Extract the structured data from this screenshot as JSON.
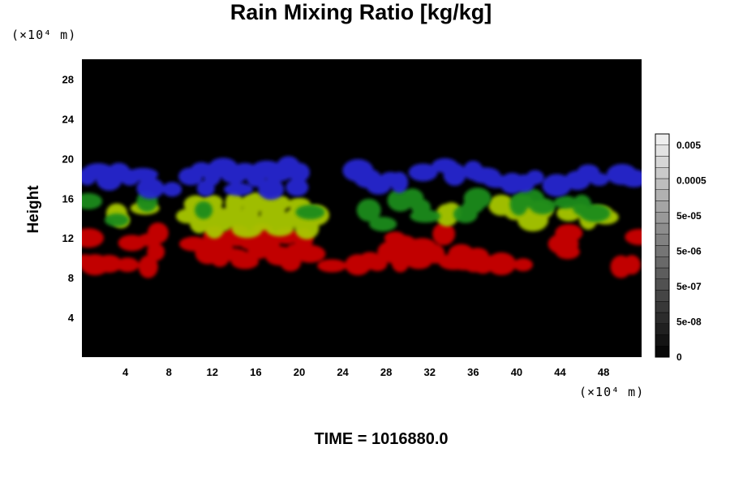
{
  "chart_data": {
    "type": "heatmap",
    "title": "Rain Mixing Ratio [kg/kg]",
    "xlabel": "",
    "ylabel": "Height",
    "x_unit": "(×10⁴ m)",
    "y_unit": "(×10⁴ m)",
    "xlim": [
      0,
      51.5
    ],
    "ylim": [
      0,
      30
    ],
    "x_ticks": [
      4,
      8,
      12,
      16,
      20,
      24,
      28,
      32,
      36,
      40,
      44,
      48
    ],
    "y_ticks": [
      4,
      8,
      12,
      16,
      20,
      24,
      28
    ],
    "background": "#000000",
    "layers": [
      {
        "color": "#cc0000",
        "blobs": [
          [
            0.3,
            9.7
          ],
          [
            1.2,
            9.3
          ],
          [
            2.5,
            9.4
          ],
          [
            4.2,
            9.3
          ],
          [
            6.1,
            9.1
          ],
          [
            0.6,
            12.0
          ],
          [
            4.6,
            11.5
          ],
          [
            6.2,
            11.8
          ],
          [
            7.0,
            12.5
          ],
          [
            6.8,
            10.6
          ],
          [
            10.3,
            11.4
          ],
          [
            11.6,
            10.5
          ],
          [
            12.2,
            12.2
          ],
          [
            13.0,
            11.0
          ],
          [
            13.9,
            10.3
          ],
          [
            14.3,
            12.2
          ],
          [
            15.5,
            11.7
          ],
          [
            16.2,
            10.6
          ],
          [
            17.4,
            11.4
          ],
          [
            18.2,
            10.2
          ],
          [
            18.8,
            12.2
          ],
          [
            19.8,
            10.8
          ],
          [
            20.4,
            11.9
          ],
          [
            21.0,
            10.4
          ],
          [
            15.0,
            9.6
          ],
          [
            16.6,
            12.3
          ],
          [
            19.2,
            9.6
          ],
          [
            12.7,
            9.9
          ],
          [
            23.0,
            9.2
          ],
          [
            25.4,
            9.3
          ],
          [
            26.5,
            9.7
          ],
          [
            27.2,
            9.4
          ],
          [
            28.6,
            10.6
          ],
          [
            29.6,
            11.3
          ],
          [
            30.4,
            10.5
          ],
          [
            28.8,
            12.0
          ],
          [
            29.3,
            9.6
          ],
          [
            31.3,
            11.1
          ],
          [
            31.0,
            9.6
          ],
          [
            33.3,
            12.4
          ],
          [
            32.5,
            10.4
          ],
          [
            34.2,
            9.6
          ],
          [
            35.2,
            9.4
          ],
          [
            36.1,
            9.6
          ],
          [
            36.9,
            9.3
          ],
          [
            37.7,
            9.5
          ],
          [
            38.6,
            9.4
          ],
          [
            34.9,
            10.4
          ],
          [
            36.4,
            10.2
          ],
          [
            40.6,
            9.3
          ],
          [
            44.3,
            11.4
          ],
          [
            44.8,
            12.5
          ],
          [
            44.7,
            10.6
          ],
          [
            49.6,
            9.1
          ],
          [
            50.6,
            9.3
          ],
          [
            51.3,
            12.1
          ]
        ]
      },
      {
        "color": "#a8c800",
        "blobs": [
          [
            9.7,
            14.2
          ],
          [
            10.8,
            13.6
          ],
          [
            11.6,
            14.7
          ],
          [
            12.6,
            13.4
          ],
          [
            13.5,
            14.4
          ],
          [
            14.5,
            13.8
          ],
          [
            15.5,
            14.6
          ],
          [
            16.5,
            13.5
          ],
          [
            17.6,
            14.3
          ],
          [
            18.6,
            13.5
          ],
          [
            19.6,
            14.2
          ],
          [
            20.6,
            13.6
          ],
          [
            21.5,
            14.3
          ],
          [
            10.5,
            15.4
          ],
          [
            12.0,
            15.6
          ],
          [
            14.0,
            15.5
          ],
          [
            16.0,
            15.6
          ],
          [
            18.0,
            15.5
          ],
          [
            20.0,
            15.4
          ],
          [
            12.2,
            13.0
          ],
          [
            15.2,
            12.9
          ],
          [
            18.2,
            12.9
          ],
          [
            20.7,
            13.0
          ],
          [
            3.2,
            14.5
          ],
          [
            3.6,
            13.8
          ],
          [
            5.8,
            15.0
          ],
          [
            38.6,
            15.3
          ],
          [
            39.9,
            14.7
          ],
          [
            40.6,
            15.6
          ],
          [
            41.5,
            13.8
          ],
          [
            42.1,
            14.8
          ],
          [
            44.8,
            14.5
          ],
          [
            45.8,
            14.8
          ],
          [
            46.6,
            13.9
          ],
          [
            47.6,
            14.4
          ],
          [
            48.2,
            14.1
          ],
          [
            33.6,
            14.3
          ],
          [
            34.0,
            14.6
          ]
        ]
      },
      {
        "color": "#1a8c1a",
        "blobs": [
          [
            0.6,
            15.7
          ],
          [
            3.2,
            13.8
          ],
          [
            6.0,
            15.7
          ],
          [
            11.2,
            14.8
          ],
          [
            21.0,
            14.6
          ],
          [
            29.3,
            15.8
          ],
          [
            30.4,
            16.0
          ],
          [
            31.2,
            15.1
          ],
          [
            31.6,
            14.2
          ],
          [
            36.4,
            16.0
          ],
          [
            35.3,
            14.4
          ],
          [
            36.0,
            15.2
          ],
          [
            40.2,
            15.4
          ],
          [
            41.2,
            16.0
          ],
          [
            42.4,
            15.2
          ],
          [
            44.5,
            15.6
          ],
          [
            46.0,
            15.3
          ],
          [
            47.2,
            14.5
          ],
          [
            27.7,
            13.4
          ],
          [
            26.4,
            14.8
          ]
        ]
      },
      {
        "color": "#2626d0",
        "blobs": [
          [
            0.5,
            18.2
          ],
          [
            1.5,
            18.8
          ],
          [
            2.5,
            17.9
          ],
          [
            3.4,
            18.6
          ],
          [
            4.4,
            18.1
          ],
          [
            5.6,
            18.4
          ],
          [
            6.3,
            17.0
          ],
          [
            10.0,
            18.2
          ],
          [
            11.0,
            18.9
          ],
          [
            12.0,
            18.4
          ],
          [
            13.0,
            19.1
          ],
          [
            14.0,
            18.3
          ],
          [
            15.0,
            18.9
          ],
          [
            16.0,
            18.2
          ],
          [
            17.0,
            18.9
          ],
          [
            18.0,
            18.4
          ],
          [
            19.0,
            19.1
          ],
          [
            20.0,
            18.6
          ],
          [
            11.4,
            17.0
          ],
          [
            14.4,
            16.9
          ],
          [
            17.4,
            16.9
          ],
          [
            19.8,
            17.1
          ],
          [
            8.3,
            16.9
          ],
          [
            25.4,
            18.8
          ],
          [
            26.3,
            18.0
          ],
          [
            27.3,
            17.2
          ],
          [
            28.4,
            18.0
          ],
          [
            29.2,
            17.6
          ],
          [
            31.4,
            18.6
          ],
          [
            33.4,
            19.3
          ],
          [
            34.3,
            18.4
          ],
          [
            36.0,
            18.8
          ],
          [
            37.1,
            18.3
          ],
          [
            38.2,
            17.7
          ],
          [
            39.6,
            17.5
          ],
          [
            40.7,
            17.5
          ],
          [
            41.7,
            18.1
          ],
          [
            43.7,
            17.3
          ],
          [
            45.6,
            17.8
          ],
          [
            46.6,
            18.6
          ],
          [
            47.6,
            17.9
          ],
          [
            49.7,
            18.4
          ],
          [
            50.8,
            18.0
          ]
        ]
      }
    ],
    "colorbar": {
      "tick_labels": [
        "0.005",
        "0.0005",
        "5e-05",
        "5e-06",
        "5e-07",
        "5e-08",
        "0"
      ],
      "levels": 20
    },
    "footer": "TIME = 1016880.0"
  }
}
